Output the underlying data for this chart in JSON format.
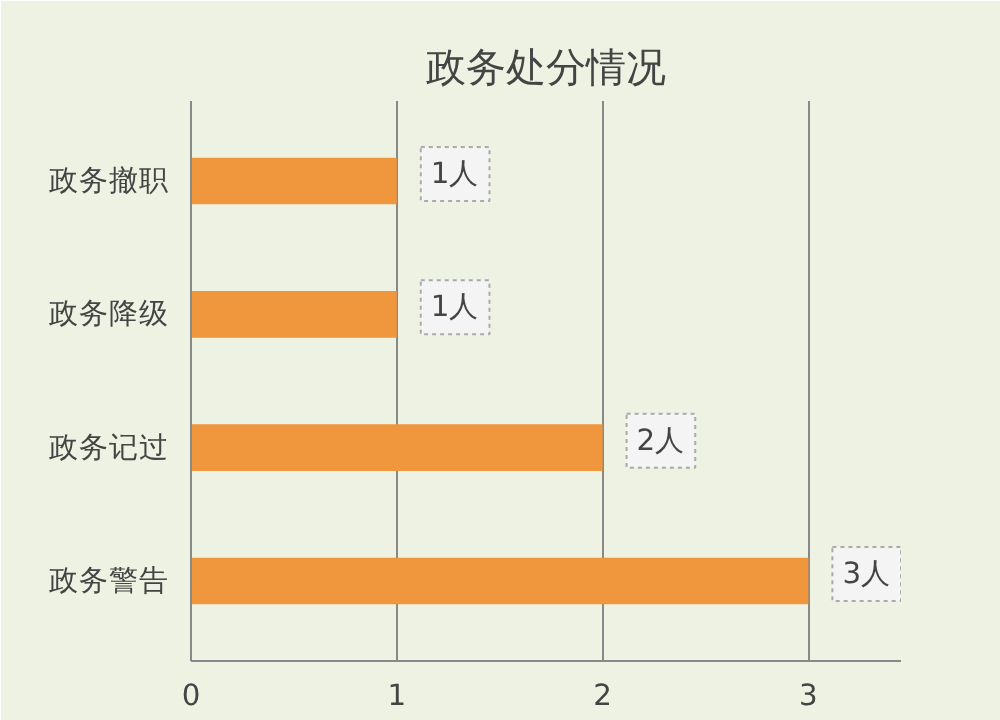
{
  "chart_data": {
    "type": "bar",
    "orientation": "horizontal",
    "title": "政务处分情况",
    "categories": [
      "政务撤职",
      "政务降级",
      "政务记过",
      "政务警告"
    ],
    "values": [
      1,
      1,
      2,
      3
    ],
    "value_labels": [
      "1人",
      "1人",
      "2人",
      "3人"
    ],
    "color": "#f0963c",
    "xlim": [
      0,
      3.45
    ],
    "xticks": [
      0,
      1,
      2,
      3
    ],
    "grid": "x"
  }
}
